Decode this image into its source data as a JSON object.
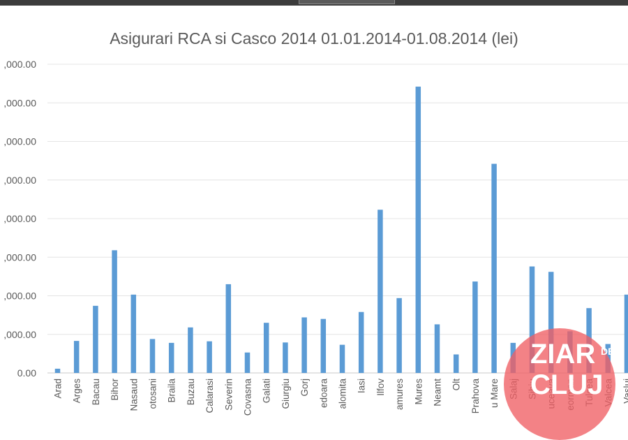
{
  "chart_data": {
    "type": "bar",
    "title": "Asigurari RCA si Casco 2014 01.01.2014-01.08.2014 (lei)",
    "xlabel": "",
    "ylabel": "",
    "ylim": [
      0,
      80000000
    ],
    "yticks": [
      {
        "value": 0,
        "label": "0.00"
      },
      {
        "value": 10000000,
        "label": ",000.00"
      },
      {
        "value": 20000000,
        "label": ",000.00"
      },
      {
        "value": 30000000,
        "label": ",000.00"
      },
      {
        "value": 40000000,
        "label": ",000.00"
      },
      {
        "value": 50000000,
        "label": ",000.00"
      },
      {
        "value": 60000000,
        "label": ",000.00"
      },
      {
        "value": 70000000,
        "label": ",000.00"
      },
      {
        "value": 80000000,
        "label": ",000.00"
      }
    ],
    "grid": true,
    "bar_color": "#5b9bd5",
    "categories": [
      "Arad",
      "Arges",
      "Bacau",
      "Bihor",
      "Nasaud",
      "otosani",
      "Braila",
      "Buzau",
      "Calarasi",
      "Severin",
      "Covasna",
      "Galati",
      "Giurgiu",
      "Gorj",
      "edoara",
      "alomita",
      "Iasi",
      "Ilfov",
      "amures",
      "Mures",
      "Neamt",
      "Olt",
      "Prahova",
      "u Mare",
      "Salaj",
      "Sibiu",
      "uceava",
      "eorman",
      "Tulcea",
      "Valcea",
      "Vaslui"
    ],
    "values": [
      1100000,
      8300000,
      17400000,
      31800000,
      20300000,
      8800000,
      7800000,
      11800000,
      8200000,
      23000000,
      5300000,
      13000000,
      7900000,
      14400000,
      14000000,
      7300000,
      15800000,
      42300000,
      19400000,
      74200000,
      12600000,
      4800000,
      23700000,
      54200000,
      7800000,
      27600000,
      26200000,
      10800000,
      16800000,
      7500000,
      20300000
    ]
  },
  "watermark": {
    "line1": "ZIAR",
    "line1_small": "DE",
    "line2": "CLUJ",
    "color": "#f05a5f"
  }
}
